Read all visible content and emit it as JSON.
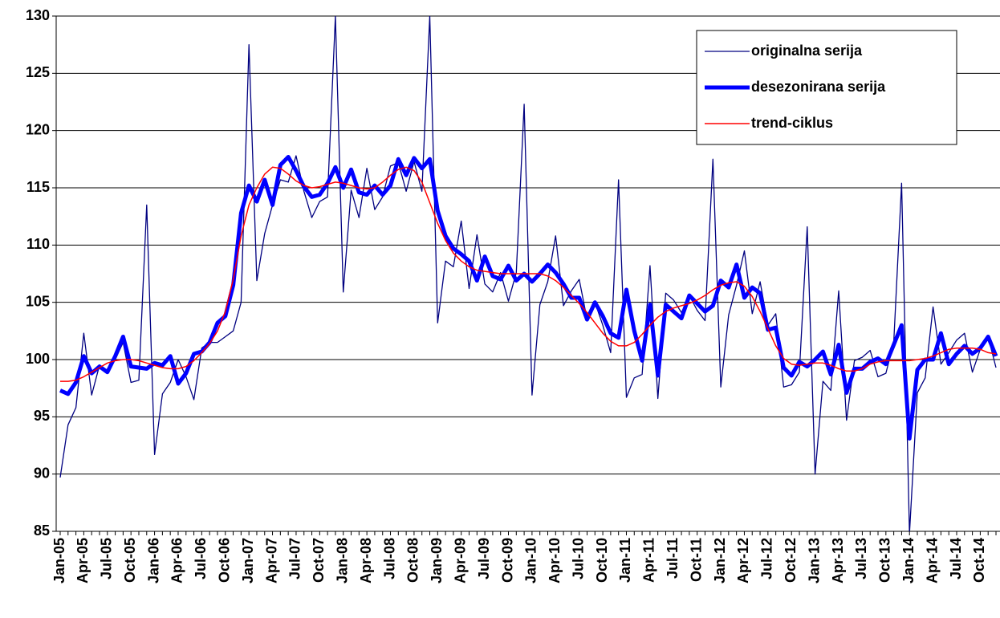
{
  "chart_data": {
    "type": "line",
    "categories": [
      "Jan-05",
      null,
      null,
      "Apr-05",
      null,
      null,
      "Jul-05",
      null,
      null,
      "Oct-05",
      null,
      null,
      "Jan-06",
      null,
      null,
      "Apr-06",
      null,
      null,
      "Jul-06",
      null,
      null,
      "Oct-06",
      null,
      null,
      "Jan-07",
      null,
      null,
      "Apr-07",
      null,
      null,
      "Jul-07",
      null,
      null,
      "Oct-07",
      null,
      null,
      "Jan-08",
      null,
      null,
      "Apr-08",
      null,
      null,
      "Jul-08",
      null,
      null,
      "Oct-08",
      null,
      null,
      "Jan-09",
      null,
      null,
      "Apr-09",
      null,
      null,
      "Jul-09",
      null,
      null,
      "Oct-09",
      null,
      null,
      "Jan-10",
      null,
      null,
      "Apr-10",
      null,
      null,
      "Jul-10",
      null,
      null,
      "Oct-10",
      null,
      null,
      "Jan-11",
      null,
      null,
      "Apr-11",
      null,
      null,
      "Jul-11",
      null,
      null,
      "Oct-11",
      null,
      null,
      "Jan-12",
      null,
      null,
      "Apr-12",
      null,
      null,
      "Jul-12",
      null,
      null,
      "Oct-12",
      null,
      null,
      "Jan-13",
      null,
      null,
      "Apr-13",
      null,
      null,
      "Jul-13",
      null,
      null,
      "Oct-13",
      null,
      null,
      "Jan-14",
      null,
      null,
      "Apr-14",
      null,
      null,
      "Jul-14",
      null,
      null,
      "Oct-14",
      null,
      null
    ],
    "series": [
      {
        "name": "originalna serija",
        "color": "#000080",
        "width": 1.3,
        "values": [
          89.7,
          94.3,
          95.8,
          102.3,
          96.9,
          99.5,
          99.0,
          100.0,
          101.5,
          98.0,
          98.2,
          113.5,
          91.7,
          97.0,
          98.0,
          100.0,
          98.5,
          96.5,
          101.0,
          101.5,
          101.5,
          102.0,
          102.5,
          105.0,
          127.5,
          106.9,
          111.0,
          113.5,
          115.7,
          115.5,
          117.8,
          114.7,
          112.4,
          113.8,
          114.2,
          130.0,
          105.9,
          114.8,
          112.4,
          116.7,
          113.1,
          114.2,
          116.9,
          117.2,
          114.7,
          117.3,
          114.7,
          130.0,
          103.2,
          108.6,
          108.1,
          112.1,
          106.2,
          110.9,
          106.6,
          105.9,
          107.6,
          105.1,
          107.6,
          122.3,
          96.9,
          104.8,
          106.8,
          110.8,
          104.7,
          106.0,
          107.0,
          103.5,
          105.0,
          103.0,
          100.6,
          115.7,
          96.7,
          98.4,
          98.7,
          108.2,
          96.6,
          105.8,
          105.2,
          104.1,
          105.6,
          104.3,
          103.4,
          117.5,
          97.6,
          103.9,
          106.5,
          109.5,
          104.0,
          106.8,
          103.0,
          104.0,
          97.6,
          97.8,
          98.9,
          111.6,
          90.0,
          98.1,
          97.3,
          106.0,
          94.7,
          99.9,
          100.2,
          100.8,
          98.5,
          98.8,
          101.5,
          115.4,
          84.8,
          97.1,
          98.4,
          104.6,
          99.6,
          100.6,
          101.7,
          102.3,
          98.9,
          100.9,
          102.0,
          99.3
        ]
      },
      {
        "name": "desezonirana serija",
        "color": "#0000ff",
        "width": 5,
        "values": [
          97.3,
          97.0,
          98.0,
          100.3,
          98.8,
          99.4,
          98.9,
          100.3,
          102.0,
          99.4,
          99.3,
          99.2,
          99.7,
          99.5,
          100.3,
          97.9,
          98.8,
          100.5,
          100.7,
          101.5,
          103.2,
          103.8,
          106.5,
          112.8,
          115.2,
          113.8,
          115.7,
          113.5,
          117.0,
          117.7,
          116.5,
          115.1,
          114.2,
          114.4,
          115.4,
          116.8,
          115.0,
          116.6,
          114.6,
          114.4,
          115.2,
          114.4,
          115.2,
          117.5,
          116.1,
          117.6,
          116.7,
          117.5,
          113.0,
          110.8,
          109.7,
          109.2,
          108.6,
          106.9,
          109.0,
          107.3,
          107.0,
          108.2,
          106.9,
          107.5,
          106.8,
          107.5,
          108.3,
          107.6,
          106.6,
          105.4,
          105.4,
          103.5,
          105.0,
          103.8,
          102.3,
          101.9,
          106.1,
          102.5,
          99.9,
          104.8,
          98.6,
          104.8,
          104.2,
          103.6,
          105.6,
          104.9,
          104.2,
          104.7,
          106.9,
          106.3,
          108.3,
          105.4,
          106.3,
          105.8,
          102.6,
          102.8,
          99.3,
          98.6,
          99.8,
          99.4,
          100.0,
          100.7,
          98.7,
          101.3,
          97.1,
          99.2,
          99.2,
          99.8,
          100.1,
          99.6,
          101.3,
          103.0,
          93.1,
          99.1,
          100.0,
          100.0,
          102.3,
          99.6,
          100.5,
          101.2,
          100.5,
          101.0,
          102.0,
          100.3
        ]
      },
      {
        "name": "trend-ciklus",
        "color": "#ff0000",
        "width": 1.5,
        "values": [
          98.1,
          98.1,
          98.2,
          98.5,
          98.9,
          99.3,
          99.7,
          99.9,
          100.0,
          100.0,
          99.9,
          99.7,
          99.5,
          99.3,
          99.2,
          99.2,
          99.4,
          99.9,
          100.6,
          101.4,
          102.5,
          104.2,
          107.0,
          110.8,
          113.5,
          115.0,
          116.2,
          116.8,
          116.7,
          116.2,
          115.6,
          115.2,
          115.0,
          115.1,
          115.3,
          115.5,
          115.4,
          115.2,
          115.0,
          114.9,
          115.0,
          115.5,
          116.1,
          116.6,
          116.8,
          116.5,
          115.5,
          113.7,
          111.9,
          110.4,
          109.3,
          108.6,
          108.1,
          107.8,
          107.7,
          107.6,
          107.5,
          107.5,
          107.5,
          107.5,
          107.5,
          107.5,
          107.3,
          106.9,
          106.3,
          105.6,
          104.9,
          104.1,
          103.2,
          102.3,
          101.6,
          101.2,
          101.2,
          101.5,
          102.2,
          103.0,
          103.7,
          104.2,
          104.5,
          104.7,
          104.9,
          105.2,
          105.6,
          106.1,
          106.5,
          106.7,
          106.8,
          106.4,
          105.5,
          104.2,
          102.7,
          101.2,
          100.1,
          99.6,
          99.5,
          99.6,
          99.7,
          99.7,
          99.5,
          99.2,
          99.0,
          99.0,
          99.2,
          99.6,
          99.8,
          99.9,
          99.9,
          99.9,
          99.9,
          100.0,
          100.1,
          100.3,
          100.6,
          100.9,
          101.0,
          101.0,
          101.0,
          100.9,
          100.6,
          100.5
        ]
      }
    ],
    "ylim": [
      85,
      130
    ],
    "yticks": [
      85,
      90,
      95,
      100,
      105,
      110,
      115,
      120,
      125,
      130
    ],
    "grid": true,
    "legend": "upper right"
  }
}
